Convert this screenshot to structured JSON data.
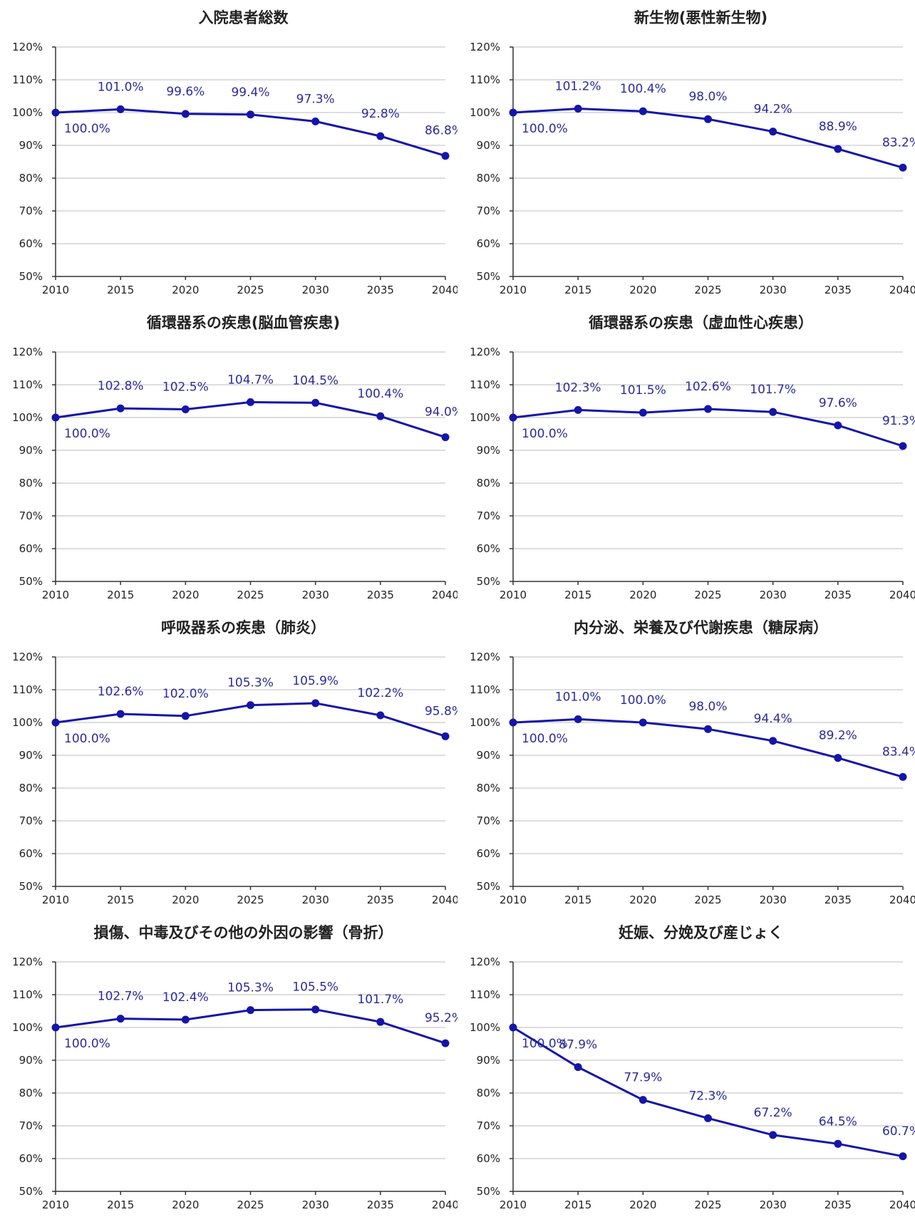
{
  "chart_data": [
    {
      "type": "line",
      "title": "入院患者総数",
      "x": [
        2010,
        2015,
        2020,
        2025,
        2030,
        2035,
        2040
      ],
      "values": [
        100.0,
        101.0,
        99.6,
        99.4,
        97.3,
        92.8,
        86.8
      ],
      "labels": [
        "100.0%",
        "101.0%",
        "99.6%",
        "99.4%",
        "97.3%",
        "92.8%",
        "86.8%"
      ],
      "ylim": [
        50,
        120
      ],
      "yticks": [
        "50%",
        "60%",
        "70%",
        "80%",
        "90%",
        "100%",
        "110%",
        "120%"
      ],
      "xticks": [
        "2010",
        "2015",
        "2020",
        "2025",
        "2030",
        "2035",
        "2040"
      ],
      "grid": true
    },
    {
      "type": "line",
      "title": "新生物(悪性新生物)",
      "x": [
        2010,
        2015,
        2020,
        2025,
        2030,
        2035,
        2040
      ],
      "values": [
        100.0,
        101.2,
        100.4,
        98.0,
        94.2,
        88.9,
        83.2
      ],
      "labels": [
        "100.0%",
        "101.2%",
        "100.4%",
        "98.0%",
        "94.2%",
        "88.9%",
        "83.2%"
      ],
      "ylim": [
        50,
        120
      ],
      "yticks": [
        "50%",
        "60%",
        "70%",
        "80%",
        "90%",
        "100%",
        "110%",
        "120%"
      ],
      "xticks": [
        "2010",
        "2015",
        "2020",
        "2025",
        "2030",
        "2035",
        "2040"
      ],
      "grid": true
    },
    {
      "type": "line",
      "title": "循環器系の疾患(脳血管疾患)",
      "x": [
        2010,
        2015,
        2020,
        2025,
        2030,
        2035,
        2040
      ],
      "values": [
        100.0,
        102.8,
        102.5,
        104.7,
        104.5,
        100.4,
        94.0
      ],
      "labels": [
        "100.0%",
        "102.8%",
        "102.5%",
        "104.7%",
        "104.5%",
        "100.4%",
        "94.0%"
      ],
      "ylim": [
        50,
        120
      ],
      "yticks": [
        "50%",
        "60%",
        "70%",
        "80%",
        "90%",
        "100%",
        "110%",
        "120%"
      ],
      "xticks": [
        "2010",
        "2015",
        "2020",
        "2025",
        "2030",
        "2035",
        "2040"
      ],
      "grid": true
    },
    {
      "type": "line",
      "title": "循環器系の疾患（虚血性心疾患）",
      "x": [
        2010,
        2015,
        2020,
        2025,
        2030,
        2035,
        2040
      ],
      "values": [
        100.0,
        102.3,
        101.5,
        102.6,
        101.7,
        97.6,
        91.3
      ],
      "labels": [
        "100.0%",
        "102.3%",
        "101.5%",
        "102.6%",
        "101.7%",
        "97.6%",
        "91.3%"
      ],
      "ylim": [
        50,
        120
      ],
      "yticks": [
        "50%",
        "60%",
        "70%",
        "80%",
        "90%",
        "100%",
        "110%",
        "120%"
      ],
      "xticks": [
        "2010",
        "2015",
        "2020",
        "2025",
        "2030",
        "2035",
        "2040"
      ],
      "grid": true
    },
    {
      "type": "line",
      "title": "呼吸器系の疾患（肺炎）",
      "x": [
        2010,
        2015,
        2020,
        2025,
        2030,
        2035,
        2040
      ],
      "values": [
        100.0,
        102.6,
        102.0,
        105.3,
        105.9,
        102.2,
        95.8
      ],
      "labels": [
        "100.0%",
        "102.6%",
        "102.0%",
        "105.3%",
        "105.9%",
        "102.2%",
        "95.8%"
      ],
      "ylim": [
        50,
        120
      ],
      "yticks": [
        "50%",
        "60%",
        "70%",
        "80%",
        "90%",
        "100%",
        "110%",
        "120%"
      ],
      "xticks": [
        "2010",
        "2015",
        "2020",
        "2025",
        "2030",
        "2035",
        "2040"
      ],
      "grid": true
    },
    {
      "type": "line",
      "title": "内分泌、栄養及び代謝疾患（糖尿病）",
      "x": [
        2010,
        2015,
        2020,
        2025,
        2030,
        2035,
        2040
      ],
      "values": [
        100.0,
        101.0,
        100.0,
        98.0,
        94.4,
        89.2,
        83.4
      ],
      "labels": [
        "100.0%",
        "101.0%",
        "100.0%",
        "98.0%",
        "94.4%",
        "89.2%",
        "83.4%"
      ],
      "ylim": [
        50,
        120
      ],
      "yticks": [
        "50%",
        "60%",
        "70%",
        "80%",
        "90%",
        "100%",
        "110%",
        "120%"
      ],
      "xticks": [
        "2010",
        "2015",
        "2020",
        "2025",
        "2030",
        "2035",
        "2040"
      ],
      "grid": true
    },
    {
      "type": "line",
      "title": "損傷、中毒及びその他の外因の影響（骨折）",
      "x": [
        2010,
        2015,
        2020,
        2025,
        2030,
        2035,
        2040
      ],
      "values": [
        100.0,
        102.7,
        102.4,
        105.3,
        105.5,
        101.7,
        95.2
      ],
      "labels": [
        "100.0%",
        "102.7%",
        "102.4%",
        "105.3%",
        "105.5%",
        "101.7%",
        "95.2%"
      ],
      "ylim": [
        50,
        120
      ],
      "yticks": [
        "50%",
        "60%",
        "70%",
        "80%",
        "90%",
        "100%",
        "110%",
        "120%"
      ],
      "xticks": [
        "2010",
        "2015",
        "2020",
        "2025",
        "2030",
        "2035",
        "2040"
      ],
      "grid": true
    },
    {
      "type": "line",
      "title": "妊娠、分娩及び産じょく",
      "x": [
        2010,
        2015,
        2020,
        2025,
        2030,
        2035,
        2040
      ],
      "values": [
        100.0,
        87.9,
        77.9,
        72.3,
        67.2,
        64.5,
        60.7
      ],
      "labels": [
        "100.0%",
        "87.9%",
        "77.9%",
        "72.3%",
        "67.2%",
        "64.5%",
        "60.7%"
      ],
      "ylim": [
        50,
        120
      ],
      "yticks": [
        "50%",
        "60%",
        "70%",
        "80%",
        "90%",
        "100%",
        "110%",
        "120%"
      ],
      "xticks": [
        "2010",
        "2015",
        "2020",
        "2025",
        "2030",
        "2035",
        "2040"
      ],
      "grid": true
    }
  ]
}
